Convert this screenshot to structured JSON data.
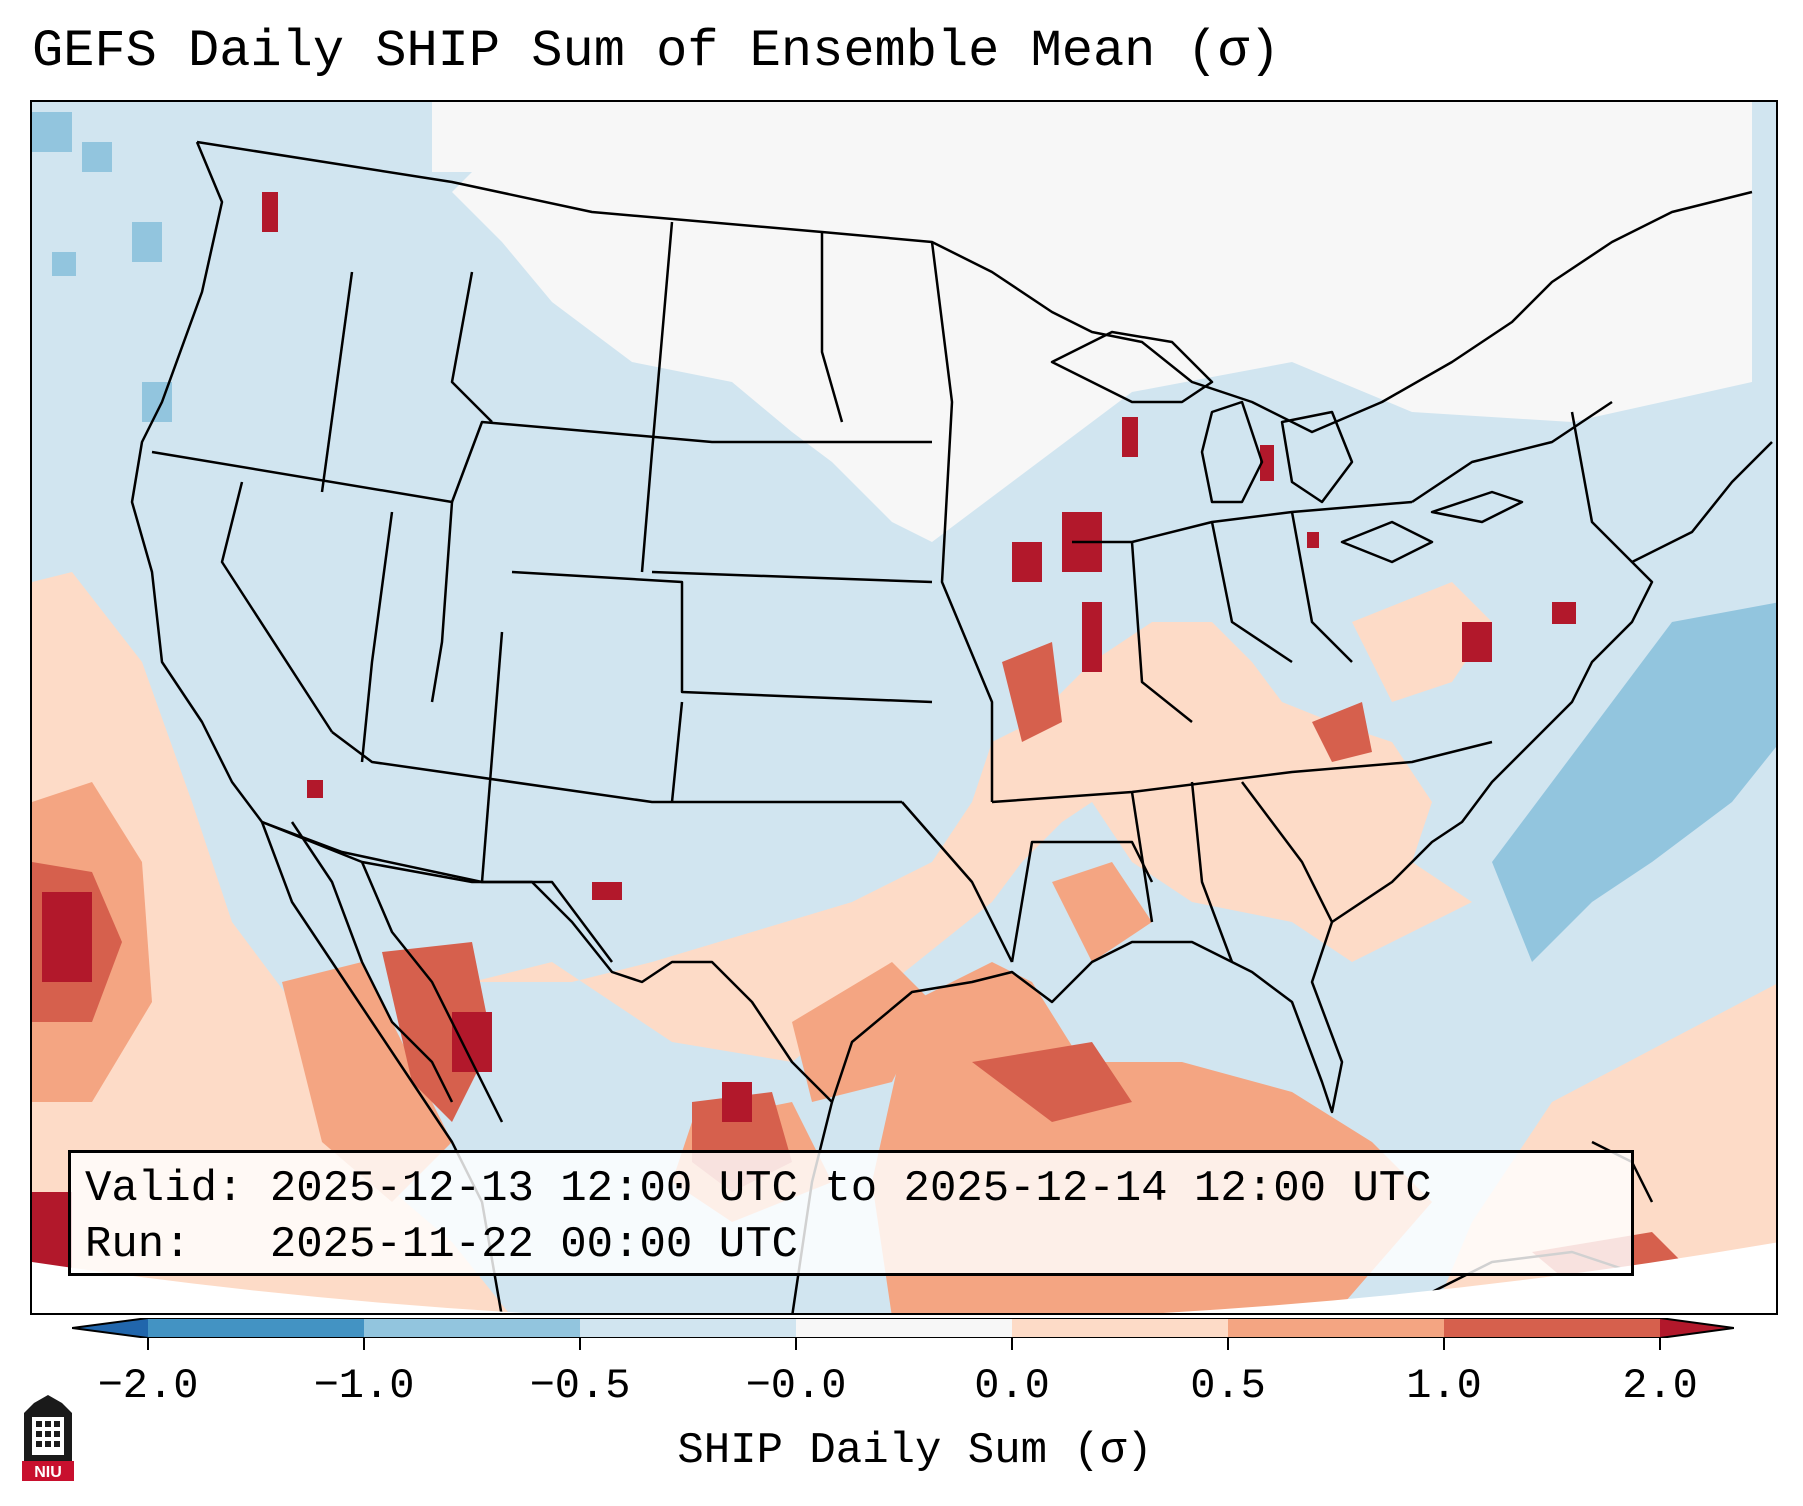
{
  "title": "GEFS Daily SHIP Sum of Ensemble Mean (σ)",
  "info": {
    "valid_line": "Valid: 2025-12-13 12:00 UTC to 2025-12-14 12:00 UTC",
    "run_line": "Run:   2025-11-22 00:00 UTC"
  },
  "colorbar": {
    "title": "SHIP Daily Sum (σ)",
    "tick_labels": [
      "−2.0",
      "−1.0",
      "−0.5",
      "−0.0",
      "0.0",
      "0.5",
      "1.0",
      "2.0"
    ],
    "colors": {
      "extend_low": "#2166ac",
      "c1": "#4393c3",
      "c2": "#92c5de",
      "c3": "#d1e5f0",
      "c4": "#f7f7f7",
      "c5": "#fddbc7",
      "c6": "#f4a582",
      "c7": "#d6604d",
      "extend_high": "#b2182b"
    }
  },
  "logo": {
    "text": "NIU",
    "color": "#c8102e"
  },
  "icons": [
    "niu-logo-icon"
  ]
}
